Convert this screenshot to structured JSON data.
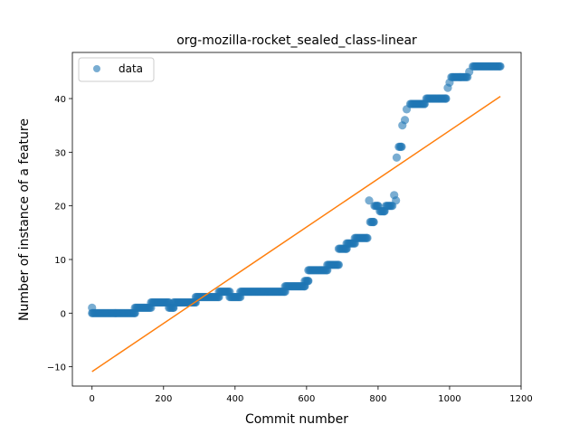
{
  "chart_data": {
    "type": "scatter",
    "title": "org-mozilla-rocket_sealed_class-linear",
    "xlabel": "Commit number",
    "ylabel": "Number of instance of a feature",
    "xlim": [
      -55,
      1200
    ],
    "ylim": [
      -13.6,
      48.6
    ],
    "xticks": [
      0,
      200,
      400,
      600,
      800,
      1000,
      1200
    ],
    "yticks": [
      -10,
      0,
      10,
      20,
      30,
      40
    ],
    "grid": false,
    "legend": {
      "placement": "top-left",
      "entries": [
        "data"
      ]
    },
    "colors": {
      "data": "#1f77b4",
      "fit": "#ff7f0e"
    },
    "series": [
      {
        "name": "data",
        "kind": "scatter",
        "segments": [
          [
            0,
            0
          ],
          [
            0,
            1
          ],
          [
            2,
            0
          ],
          [
            120,
            0
          ],
          [
            120,
            1
          ],
          [
            165,
            1
          ],
          [
            165,
            2
          ],
          [
            215,
            2
          ],
          [
            215,
            1
          ],
          [
            228,
            1
          ],
          [
            228,
            2
          ],
          [
            290,
            2
          ],
          [
            290,
            3
          ],
          [
            355,
            3
          ],
          [
            355,
            4
          ],
          [
            385,
            4
          ],
          [
            385,
            3
          ],
          [
            415,
            3
          ],
          [
            415,
            4
          ],
          [
            540,
            4
          ],
          [
            540,
            5
          ],
          [
            595,
            5
          ],
          [
            595,
            6
          ],
          [
            605,
            6
          ],
          [
            605,
            8
          ],
          [
            658,
            8
          ],
          [
            658,
            9
          ],
          [
            690,
            9
          ],
          [
            690,
            12
          ],
          [
            712,
            12
          ],
          [
            712,
            13
          ],
          [
            735,
            13
          ],
          [
            735,
            14
          ],
          [
            770,
            14
          ],
          [
            775,
            21
          ],
          [
            778,
            17
          ],
          [
            788,
            17
          ],
          [
            790,
            20
          ],
          [
            800,
            20
          ],
          [
            805,
            19
          ],
          [
            818,
            19
          ],
          [
            822,
            20
          ],
          [
            840,
            20
          ],
          [
            845,
            22
          ],
          [
            850,
            21
          ],
          [
            852,
            29
          ],
          [
            858,
            31
          ],
          [
            866,
            31
          ],
          [
            868,
            35
          ],
          [
            875,
            36
          ],
          [
            880,
            38
          ],
          [
            890,
            39
          ],
          [
            930,
            39
          ],
          [
            935,
            40
          ],
          [
            990,
            40
          ],
          [
            995,
            42
          ],
          [
            1000,
            43
          ],
          [
            1005,
            44
          ],
          [
            1050,
            44
          ],
          [
            1055,
            45
          ],
          [
            1065,
            46
          ],
          [
            1142,
            46
          ]
        ]
      },
      {
        "name": "",
        "kind": "line",
        "points": [
          [
            0,
            -10.9
          ],
          [
            1142,
            40.4
          ]
        ]
      }
    ]
  }
}
